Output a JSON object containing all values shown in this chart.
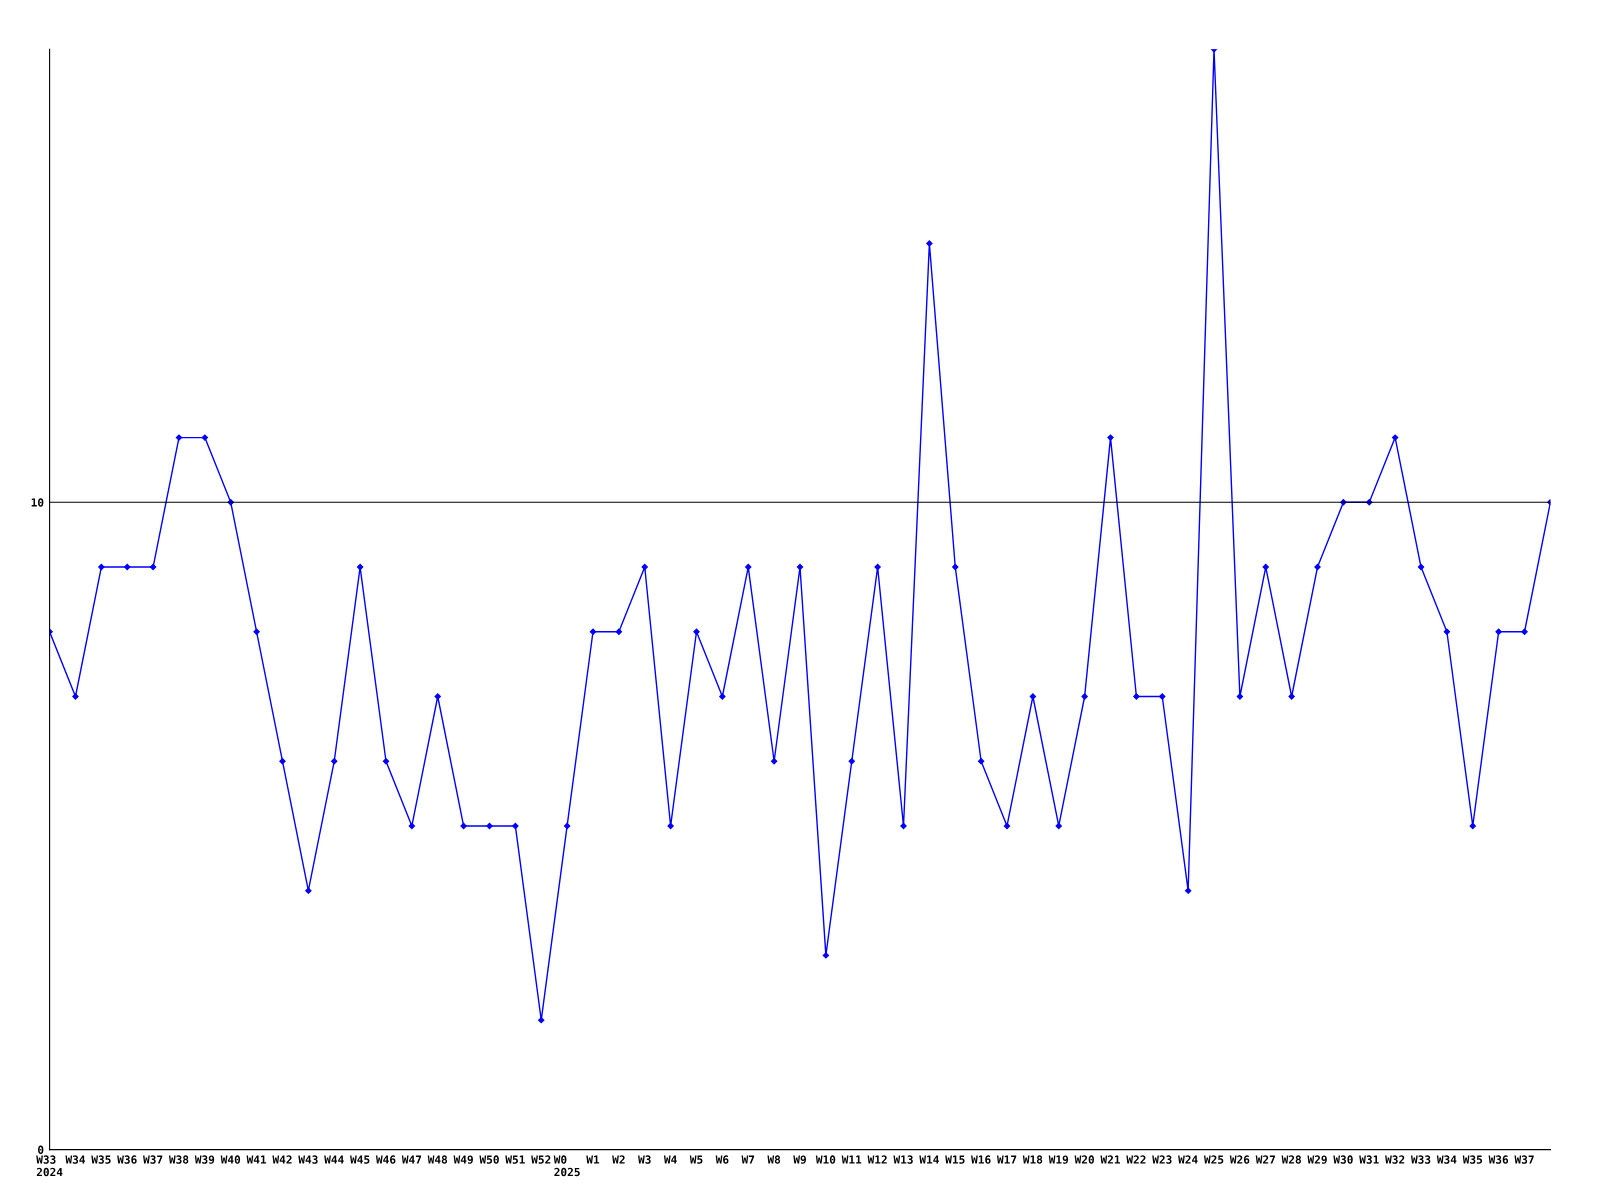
{
  "chart_data": {
    "type": "line",
    "categories": [
      "W33\n2024",
      "W34",
      "W35",
      "W36",
      "W37",
      "W38",
      "W39",
      "W40",
      "W41",
      "W42",
      "W43",
      "W44",
      "W45",
      "W46",
      "W47",
      "W48",
      "W49",
      "W50",
      "W51",
      "W52",
      "W0\n2025",
      "W1",
      "W2",
      "W3",
      "W4",
      "W5",
      "W6",
      "W7",
      "W8",
      "W9",
      "W10",
      "W11",
      "W12",
      "W13",
      "W14",
      "W15",
      "W16",
      "W17",
      "W18",
      "W19",
      "W20",
      "W21",
      "W22",
      "W23",
      "W24",
      "W25",
      "W26",
      "W27",
      "W28",
      "W29",
      "W30",
      "W31",
      "W32",
      "W33",
      "W34",
      "W35",
      "W36",
      "W37",
      null
    ],
    "series": [
      {
        "color": "#0000ff",
        "values": [
          8,
          7,
          9,
          9,
          9,
          11,
          11,
          10,
          8,
          6,
          4,
          6,
          9,
          6,
          5,
          7,
          5,
          5,
          5,
          2,
          5,
          8,
          8,
          9,
          5,
          8,
          7,
          9,
          6,
          9,
          3,
          6,
          9,
          5,
          14,
          9,
          6,
          5,
          7,
          5,
          7,
          11,
          7,
          7,
          4,
          17,
          7,
          9,
          7,
          9,
          10,
          10,
          11,
          9,
          8,
          5,
          8,
          8,
          10
        ]
      }
    ],
    "ylim": [
      0,
      17
    ],
    "yticks": [
      0,
      10
    ],
    "ref_lines": [
      {
        "axis": "y",
        "value": 10,
        "color": "#000000"
      }
    ],
    "marker": "diamond",
    "line_style": "solid",
    "grid": false,
    "legend": false
  }
}
